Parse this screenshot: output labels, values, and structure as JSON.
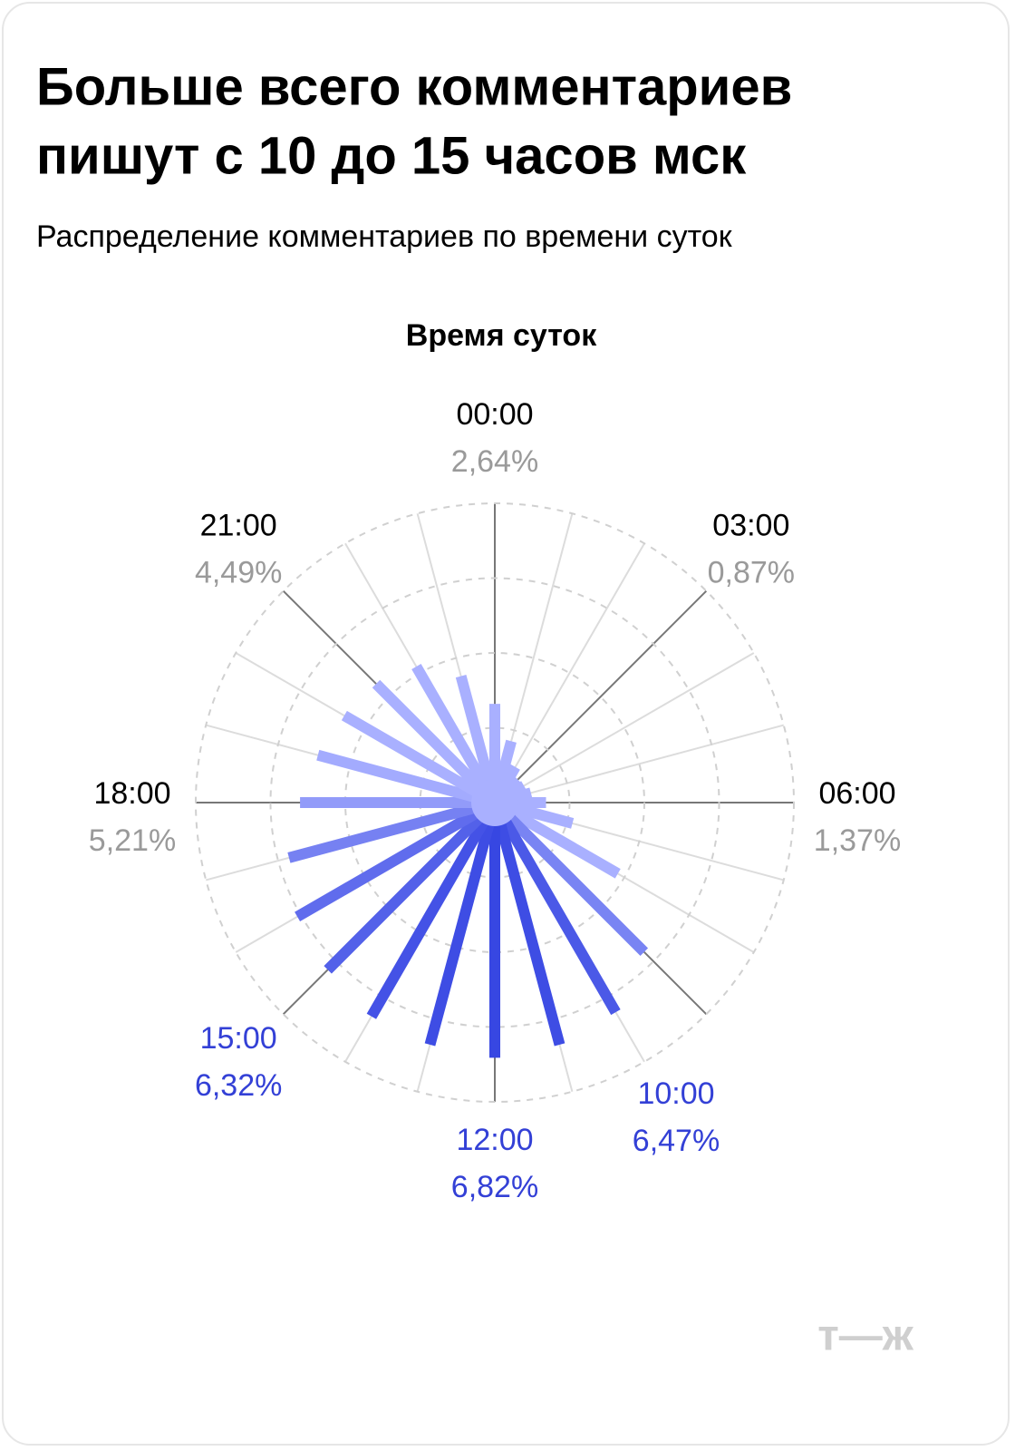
{
  "chart_data": {
    "type": "radial-bar",
    "title": [
      "Больше всего комментариев",
      "пишут с 10 до 15 часов мск"
    ],
    "subtitle": "Распределение комментариев по времени суток",
    "axis_title": "Время суток",
    "logo": "т—ж",
    "categories": [
      "00:00",
      null,
      null,
      "03:00",
      null,
      null,
      "06:00",
      null,
      null,
      null,
      "10:00",
      null,
      "12:00",
      null,
      null,
      "15:00",
      null,
      null,
      "18:00",
      null,
      null,
      "21:00",
      null,
      null
    ],
    "values": [
      2.64,
      1.7,
      1.1,
      0.87,
      0.9,
      1.0,
      1.37,
      2.15,
      3.8,
      5.65,
      6.47,
      6.7,
      6.82,
      6.7,
      6.6,
      6.32,
      6.1,
      5.7,
      5.21,
      4.9,
      4.65,
      4.49,
      4.2,
      3.5
    ],
    "value_labels": [
      "2,64%",
      null,
      null,
      "0,87%",
      null,
      null,
      "1,37%",
      null,
      null,
      null,
      "6,47%",
      null,
      "6,82%",
      null,
      null,
      "6,32%",
      null,
      null,
      "5,21%",
      null,
      null,
      "4,49%",
      null,
      null
    ],
    "label_colors": [
      "#000000",
      null,
      null,
      "#000000",
      null,
      null,
      "#000000",
      null,
      null,
      null,
      "#3340d6",
      null,
      "#3340d6",
      null,
      null,
      "#3340d6",
      null,
      null,
      "#000000",
      null,
      null,
      "#000000",
      null,
      null
    ],
    "rlim": [
      0,
      8
    ],
    "rticks": [
      2,
      4,
      6,
      8
    ],
    "color_low": "#a9b0ff",
    "color_high": "#2233dd",
    "grid": true
  }
}
